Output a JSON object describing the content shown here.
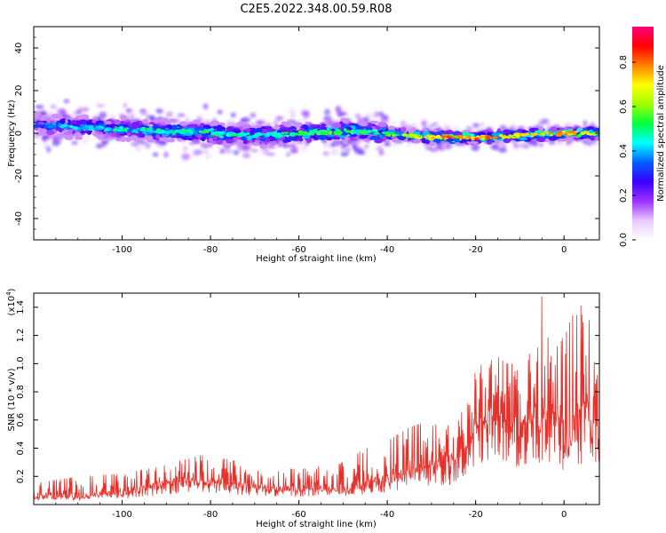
{
  "title": "C2E5.2022.348.00.59.R08",
  "chart_data": [
    {
      "type": "heatmap",
      "xlabel": "Height of straight line (km)",
      "ylabel": "Frequency (Hz)",
      "xlim": [
        -120,
        8
      ],
      "ylim": [
        -50,
        50
      ],
      "xticks": [
        -100,
        -80,
        -60,
        -40,
        -20,
        0
      ],
      "yticks": [
        -40,
        -20,
        0,
        20,
        40
      ],
      "colorbar": {
        "label": "Normalized spectral amplitude",
        "range": [
          0,
          0.96
        ],
        "ticks": [
          0.0,
          0.2,
          0.4,
          0.6,
          0.8
        ],
        "colors": [
          "#ffffff",
          "#e8c8ff",
          "#9b30ff",
          "#3a00ff",
          "#0060ff",
          "#00ffff",
          "#00ff40",
          "#a0ff00",
          "#ffff00",
          "#ff8000",
          "#ff0000",
          "#ff0080"
        ]
      },
      "ridge": {
        "x": [
          -120,
          -110,
          -100,
          -90,
          -80,
          -70,
          -60,
          -50,
          -40,
          -30,
          -25,
          -20,
          -10,
          0,
          8
        ],
        "frequency_hz": [
          4,
          3,
          2,
          1,
          0,
          -1,
          0,
          1,
          0,
          -2,
          -2,
          -2,
          -1,
          0,
          0
        ],
        "peak_amplitude": [
          0.35,
          0.45,
          0.5,
          0.5,
          0.55,
          0.5,
          0.55,
          0.6,
          0.55,
          0.75,
          0.85,
          0.8,
          0.75,
          0.8,
          0.7
        ]
      }
    },
    {
      "type": "line",
      "xlabel": "Height of straight line (km)",
      "ylabel": "SNR (10 * v/v)",
      "yscale_label": "(x10",
      "yscale_exp": "4",
      "xlim": [
        -120,
        8
      ],
      "ylim": [
        0,
        1.5
      ],
      "xticks": [
        -100,
        -80,
        -60,
        -40,
        -20,
        0
      ],
      "yticks": [
        "0.2",
        "0.4",
        "0.6",
        "0.8",
        "1.0",
        "1.2",
        "1.4"
      ],
      "color": "#e8302a",
      "series": [
        {
          "x": [
            -120,
            -110,
            -100,
            -90,
            -85,
            -80,
            -70,
            -60,
            -50,
            -45,
            -40,
            -35,
            -30,
            -25,
            -22,
            -20,
            -17,
            -15,
            -13,
            -10,
            -5,
            -3,
            0,
            3,
            5,
            8
          ],
          "y": [
            0.07,
            0.08,
            0.1,
            0.18,
            0.2,
            0.2,
            0.15,
            0.13,
            0.15,
            0.18,
            0.22,
            0.28,
            0.32,
            0.35,
            0.5,
            0.65,
            0.7,
            0.75,
            0.7,
            0.6,
            0.75,
            0.7,
            0.6,
            0.7,
            0.75,
            0.55
          ],
          "max_y": [
            0.15,
            0.2,
            0.22,
            0.28,
            0.35,
            0.35,
            0.28,
            0.25,
            0.3,
            0.4,
            0.45,
            0.55,
            0.6,
            0.55,
            0.75,
            0.95,
            1.1,
            1.05,
            1.0,
            1.0,
            1.48,
            1.05,
            1.2,
            1.42,
            1.4,
            1.0
          ]
        }
      ]
    }
  ]
}
